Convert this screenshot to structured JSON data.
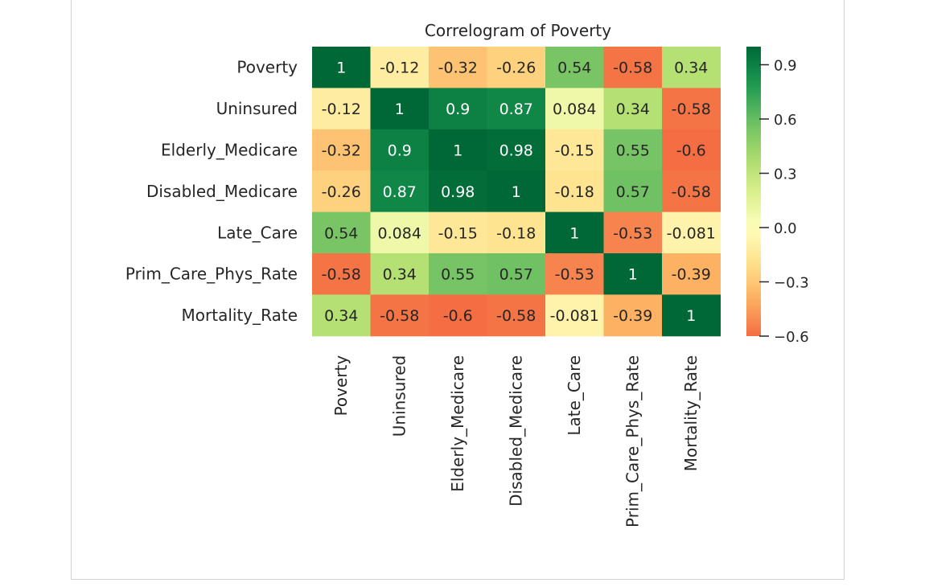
{
  "chart_data": {
    "type": "heatmap",
    "title": "Correlogram of Poverty",
    "row_labels": [
      "Poverty",
      "Uninsured",
      "Elderly_Medicare",
      "Disabled_Medicare",
      "Late_Care",
      "Prim_Care_Phys_Rate",
      "Mortality_Rate"
    ],
    "col_labels": [
      "Poverty",
      "Uninsured",
      "Elderly_Medicare",
      "Disabled_Medicare",
      "Late_Care",
      "Prim_Care_Phys_Rate",
      "Mortality_Rate"
    ],
    "values": [
      [
        1,
        -0.12,
        -0.32,
        -0.26,
        0.54,
        -0.58,
        0.34
      ],
      [
        -0.12,
        1,
        0.9,
        0.87,
        0.084,
        0.34,
        -0.58
      ],
      [
        -0.32,
        0.9,
        1,
        0.98,
        -0.15,
        0.55,
        -0.6
      ],
      [
        -0.26,
        0.87,
        0.98,
        1,
        -0.18,
        0.57,
        -0.58
      ],
      [
        0.54,
        0.084,
        -0.15,
        -0.18,
        1,
        -0.53,
        -0.081
      ],
      [
        -0.58,
        0.34,
        0.55,
        0.57,
        -0.53,
        1,
        -0.39
      ],
      [
        0.34,
        -0.58,
        -0.6,
        -0.58,
        -0.081,
        -0.39,
        1
      ]
    ],
    "annotations": [
      [
        "1",
        "-0.12",
        "-0.32",
        "-0.26",
        "0.54",
        "-0.58",
        "0.34"
      ],
      [
        "-0.12",
        "1",
        "0.9",
        "0.87",
        "0.084",
        "0.34",
        "-0.58"
      ],
      [
        "-0.32",
        "0.9",
        "1",
        "0.98",
        "-0.15",
        "0.55",
        "-0.6"
      ],
      [
        "-0.26",
        "0.87",
        "0.98",
        "1",
        "-0.18",
        "0.57",
        "-0.58"
      ],
      [
        "0.54",
        "0.084",
        "-0.15",
        "-0.18",
        "1",
        "-0.53",
        "-0.081"
      ],
      [
        "-0.58",
        "0.34",
        "0.55",
        "0.57",
        "-0.53",
        "1",
        "-0.39"
      ],
      [
        "0.34",
        "-0.58",
        "-0.6",
        "-0.58",
        "-0.081",
        "-0.39",
        "1"
      ]
    ],
    "colormap": "RdYlGn",
    "vmin": -0.6,
    "vmax": 1.0,
    "colorbar_ticks": [
      0.9,
      0.6,
      0.3,
      0.0,
      -0.3,
      -0.6
    ],
    "colorbar_tick_labels": [
      "0.9",
      "0.6",
      "0.3",
      "0.0",
      "−0.3",
      "−0.6"
    ],
    "colorbar_range": [
      -0.6,
      1.0
    ]
  }
}
